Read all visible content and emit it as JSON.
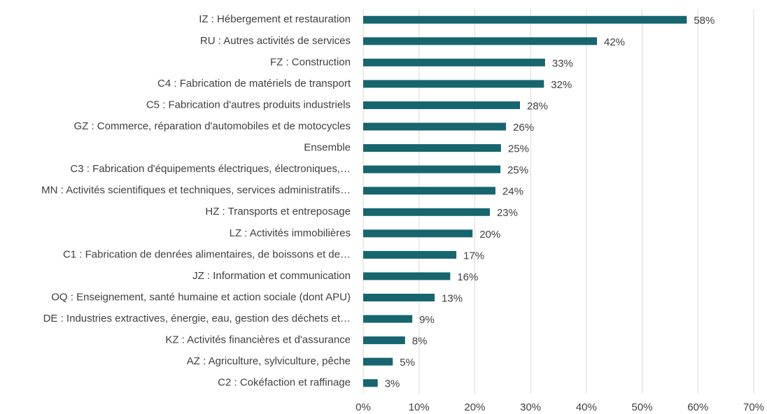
{
  "chart_data": {
    "type": "hbar",
    "categories": [
      "IZ : Hébergement et restauration",
      "RU : Autres activités de services",
      "FZ : Construction",
      "C4 : Fabrication de matériels de transport",
      "C5 : Fabrication d'autres produits industriels",
      "GZ : Commerce, réparation d'automobiles et de motocycles",
      "Ensemble",
      "C3 : Fabrication d'équipements électriques, électroniques,…",
      "MN : Activités scientifiques et techniques, services administratifs…",
      "HZ : Transports et entreposage",
      "LZ : Activités immobilières",
      "C1 : Fabrication de denrées alimentaires, de boissons et de…",
      "JZ : Information et communication",
      "OQ :  Enseignement, santé humaine et action sociale (dont APU)",
      "DE : Industries extractives, énergie, eau, gestion des déchets et…",
      "KZ : Activités financières et d'assurance",
      "AZ : Agriculture, sylviculture, pêche",
      "C2 : Cokéfaction et raffinage"
    ],
    "values": [
      58.0,
      41.9,
      32.6,
      32.4,
      28.1,
      25.6,
      24.7,
      24.6,
      23.7,
      22.7,
      19.6,
      16.7,
      15.6,
      12.8,
      8.8,
      7.5,
      5.3,
      2.6
    ],
    "value_labels": [
      "58%",
      "42%",
      "33%",
      "32%",
      "28%",
      "26%",
      "25%",
      "25%",
      "24%",
      "23%",
      "20%",
      "17%",
      "16%",
      "13%",
      "9%",
      "8%",
      "5%",
      "3%"
    ],
    "color": "#17656f",
    "xlim": [
      0,
      70
    ],
    "xticks": [
      {
        "value": 0,
        "label": "0%"
      },
      {
        "value": 10,
        "label": "10%"
      },
      {
        "value": 20,
        "label": "20%"
      },
      {
        "value": 30,
        "label": "30%"
      },
      {
        "value": 40,
        "label": "40%"
      },
      {
        "value": 50,
        "label": "50%"
      },
      {
        "value": 60,
        "label": "60%"
      },
      {
        "value": 70,
        "label": "70%"
      }
    ],
    "grid": true
  }
}
